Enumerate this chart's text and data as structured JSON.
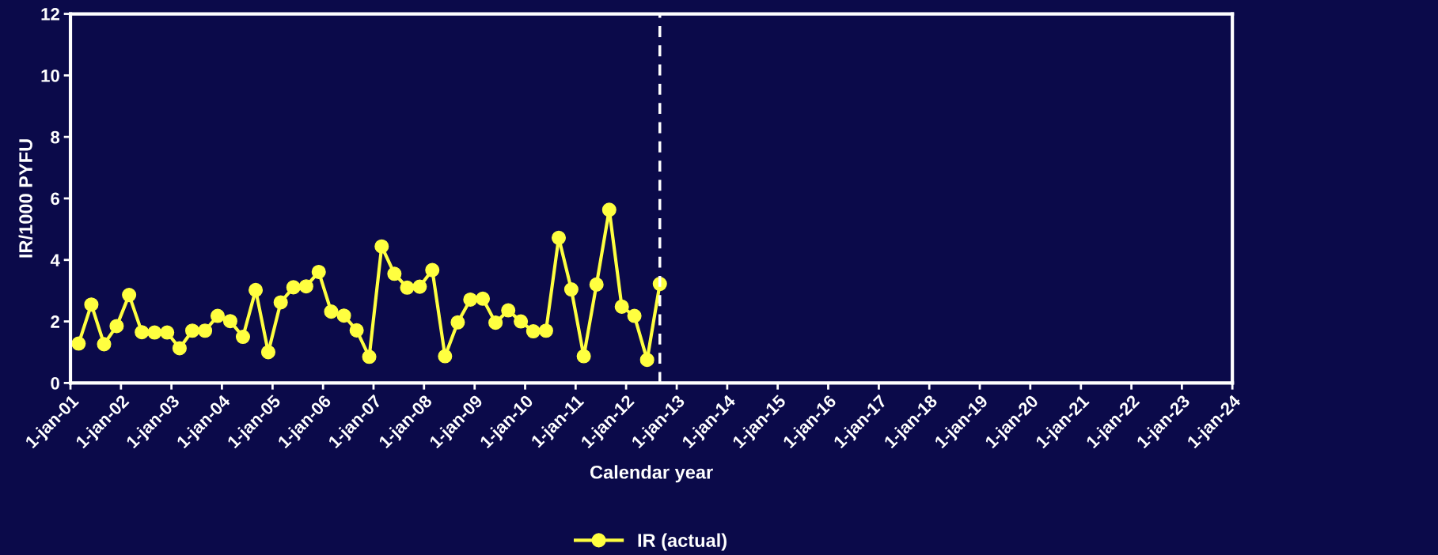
{
  "chart_data": {
    "type": "line",
    "xlabel": "Calendar year",
    "ylabel": "IR/1000 PYFU",
    "x": [
      "2001-03",
      "2001-06",
      "2001-09",
      "2001-12",
      "2002-03",
      "2002-06",
      "2002-09",
      "2002-12",
      "2003-03",
      "2003-06",
      "2003-09",
      "2003-12",
      "2004-03",
      "2004-06",
      "2004-09",
      "2004-12",
      "2005-03",
      "2005-06",
      "2005-09",
      "2005-12",
      "2006-03",
      "2006-06",
      "2006-09",
      "2006-12",
      "2007-03",
      "2007-06",
      "2007-09",
      "2007-12",
      "2008-03",
      "2008-06",
      "2008-09",
      "2008-12",
      "2009-03",
      "2009-06",
      "2009-09",
      "2009-12",
      "2010-03",
      "2010-06",
      "2010-09",
      "2010-12",
      "2011-03",
      "2011-06",
      "2011-09",
      "2011-12",
      "2012-03",
      "2012-06",
      "2012-09"
    ],
    "series": [
      {
        "name": "IR (actual)",
        "color": "#ffff40",
        "values": [
          1.28,
          2.55,
          1.26,
          1.85,
          2.86,
          1.65,
          1.64,
          1.64,
          1.13,
          1.7,
          1.7,
          2.18,
          2.01,
          1.5,
          3.02,
          1.0,
          2.62,
          3.11,
          3.14,
          3.61,
          2.32,
          2.19,
          1.71,
          0.85,
          4.44,
          3.55,
          3.1,
          3.13,
          3.67,
          0.87,
          1.97,
          2.71,
          2.74,
          1.96,
          2.36,
          2.0,
          1.68,
          1.7,
          4.72,
          3.04,
          0.87,
          3.2,
          5.63,
          2.48,
          2.18,
          0.75,
          3.22
        ]
      }
    ],
    "xlim": [
      "2001-01-01",
      "2024-01-01"
    ],
    "xticks": [
      {
        "value": "2001-01-01",
        "label": "1-jan-01"
      },
      {
        "value": "2002-01-01",
        "label": "1-jan-02"
      },
      {
        "value": "2003-01-01",
        "label": "1-jan-03"
      },
      {
        "value": "2004-01-01",
        "label": "1-jan-04"
      },
      {
        "value": "2005-01-01",
        "label": "1-jan-05"
      },
      {
        "value": "2006-01-01",
        "label": "1-jan-06"
      },
      {
        "value": "2007-01-01",
        "label": "1-jan-07"
      },
      {
        "value": "2008-01-01",
        "label": "1-jan-08"
      },
      {
        "value": "2009-01-01",
        "label": "1-jan-09"
      },
      {
        "value": "2010-01-01",
        "label": "1-jan-10"
      },
      {
        "value": "2011-01-01",
        "label": "1-jan-11"
      },
      {
        "value": "2012-01-01",
        "label": "1-jan-12"
      },
      {
        "value": "2013-01-01",
        "label": "1-jan-13"
      },
      {
        "value": "2014-01-01",
        "label": "1-jan-14"
      },
      {
        "value": "2015-01-01",
        "label": "1-jan-15"
      },
      {
        "value": "2016-01-01",
        "label": "1-jan-16"
      },
      {
        "value": "2017-01-01",
        "label": "1-jan-17"
      },
      {
        "value": "2018-01-01",
        "label": "1-jan-18"
      },
      {
        "value": "2019-01-01",
        "label": "1-jan-19"
      },
      {
        "value": "2020-01-01",
        "label": "1-jan-20"
      },
      {
        "value": "2021-01-01",
        "label": "1-jan-21"
      },
      {
        "value": "2022-01-01",
        "label": "1-jan-22"
      },
      {
        "value": "2023-01-01",
        "label": "1-jan-23"
      },
      {
        "value": "2024-01-01",
        "label": "1-jan-24"
      }
    ],
    "ylim": [
      0,
      12
    ],
    "yticks": [
      0,
      2,
      4,
      6,
      8,
      10,
      12
    ],
    "ref_lines": [
      {
        "axis": "x",
        "value": "2012-09",
        "color": "#ffffff",
        "line_style": "dashed"
      }
    ],
    "grid": false,
    "legend": "bottom",
    "marker": "circle",
    "line_style": "solid"
  }
}
